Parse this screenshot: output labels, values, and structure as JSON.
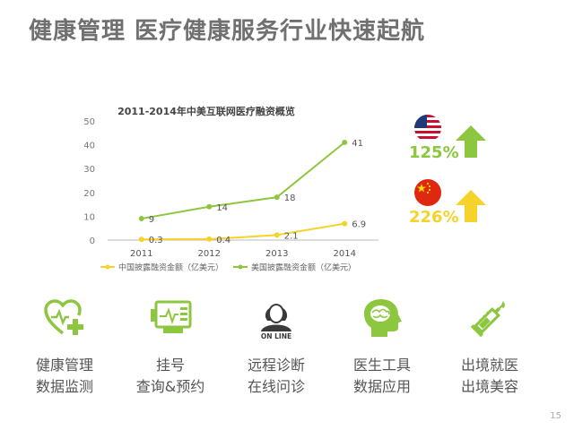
{
  "headline": "健康管理 医疗健康服务行业快速起航",
  "colors": {
    "green": "#8dc63f",
    "yellow": "#f5d32a",
    "gray_title": "#707070"
  },
  "chart_data": {
    "type": "line",
    "title": "2011-2014年中美互联网医疗融资概览",
    "categories": [
      "2011",
      "2012",
      "2013",
      "2014"
    ],
    "ylim": [
      0,
      50
    ],
    "yticks": [
      "0",
      "10",
      "20",
      "30",
      "40",
      "50"
    ],
    "series": [
      {
        "name": "中国披露融资金额（亿美元）",
        "color": "#f5d32a",
        "values": [
          0.3,
          0.4,
          2.1,
          6.9
        ],
        "labels": [
          "0.3",
          "0.4",
          "2.1",
          "6.9"
        ]
      },
      {
        "name": "美国披露融资金额（亿美元）",
        "color": "#8dc63f",
        "values": [
          9,
          14,
          18,
          41
        ],
        "labels": [
          "9",
          "14",
          "18",
          "41"
        ]
      }
    ],
    "legend_position": "bottom"
  },
  "growth": {
    "usa": {
      "pct": "125%",
      "flag": "usa-flag",
      "pct_color": "#8dc63f"
    },
    "china": {
      "pct": "226%",
      "flag": "china-flag",
      "pct_color": "#f5d32a"
    }
  },
  "features": [
    {
      "icon": "heart-plus-icon",
      "line1": "健康管理",
      "line2": "数据监测"
    },
    {
      "icon": "monitor-icon",
      "line1": "挂号",
      "line2": "查询&预约"
    },
    {
      "icon": "online-doctor-icon",
      "online_text": "ON LINE",
      "line1": "远程诊断",
      "line2": "在线问诊"
    },
    {
      "icon": "brain-icon",
      "line1": "医生工具",
      "line2": "数据应用"
    },
    {
      "icon": "syringe-icon",
      "line1": "出境就医",
      "line2": "出境美容"
    }
  ],
  "page_number": "15"
}
